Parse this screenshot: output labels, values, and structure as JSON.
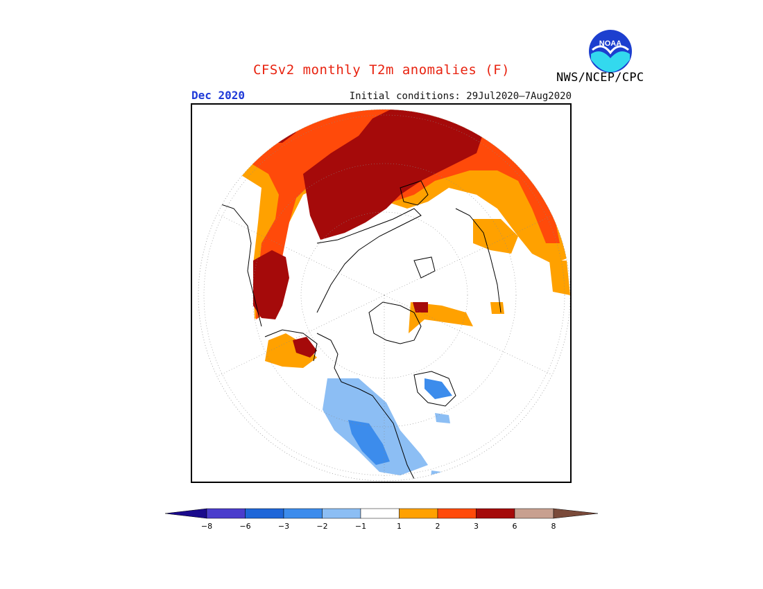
{
  "title": "CFSv2 monthly T2m anomalies (F)",
  "valid_month": "Dec 2020",
  "initial_conditions": "Initial conditions: 29Jul2020–7Aug2020",
  "agency": "NWS/NCEP/CPC",
  "logo_text": "NOAA",
  "legend": {
    "bins": [
      {
        "color": "#1a0a8c"
      },
      {
        "color": "#4a3ccc"
      },
      {
        "color": "#1e66d8"
      },
      {
        "color": "#3c8cec"
      },
      {
        "color": "#8cbef4"
      },
      {
        "color": "#ffffff"
      },
      {
        "color": "#ffa100"
      },
      {
        "color": "#ff4a0a"
      },
      {
        "color": "#a50a0a"
      },
      {
        "color": "#c8a090"
      },
      {
        "color": "#7a4a3a"
      }
    ],
    "tick_labels": [
      "−8",
      "−6",
      "−3",
      "−2",
      "−1",
      "1",
      "2",
      "3",
      "6",
      "8"
    ]
  },
  "colors": {
    "warm_1_2": "#ffa100",
    "warm_2_3": "#ff4a0a",
    "warm_3_6": "#a50a0a",
    "cool_1_2": "#8cbef4",
    "cool_2_3": "#3c8cec",
    "title": "#e8220f",
    "month": "#1f3ad8"
  }
}
